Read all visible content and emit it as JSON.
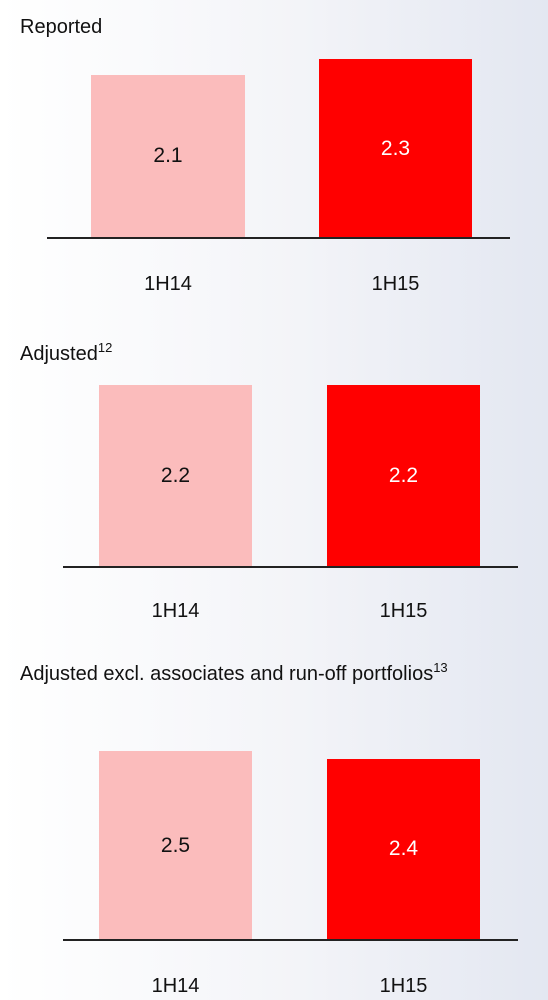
{
  "chart_data": [
    {
      "type": "bar",
      "title": "Reported",
      "categories": [
        "1H14",
        "1H15"
      ],
      "values": [
        2.1,
        2.3
      ],
      "colors": [
        "#fbbcbc",
        "#ff0000"
      ]
    },
    {
      "type": "bar",
      "title": "Adjusted",
      "title_footnote": "12",
      "categories": [
        "1H14",
        "1H15"
      ],
      "values": [
        2.2,
        2.2
      ],
      "colors": [
        "#fbbcbc",
        "#ff0000"
      ]
    },
    {
      "type": "bar",
      "title": "Adjusted excl. associates and run-off portfolios",
      "title_footnote": "13",
      "categories": [
        "1H14",
        "1H15"
      ],
      "values": [
        2.5,
        2.4
      ],
      "colors": [
        "#fbbcbc",
        "#ff0000"
      ]
    }
  ]
}
